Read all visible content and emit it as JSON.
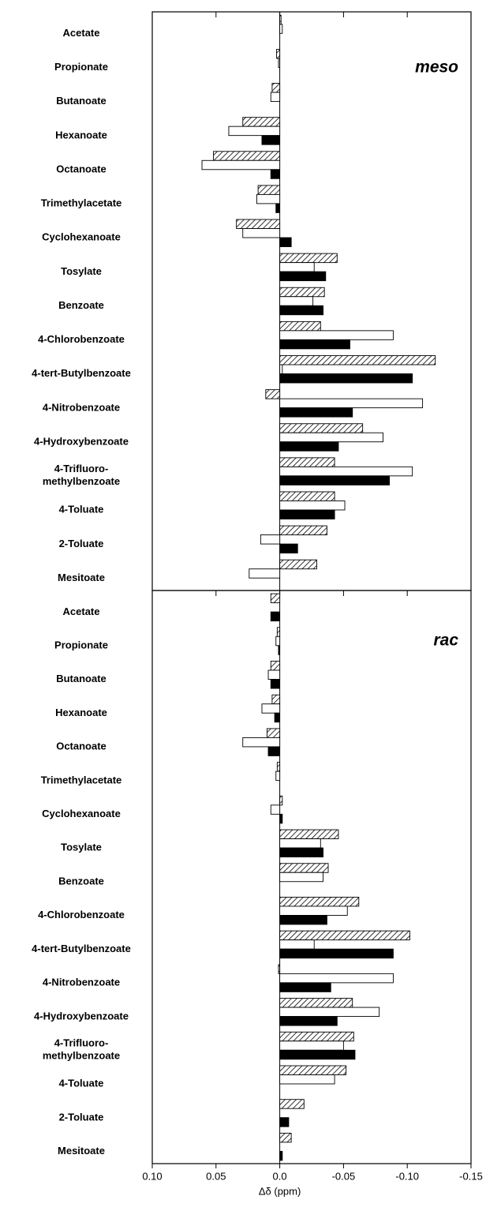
{
  "chart_data": [
    {
      "type": "bar",
      "orientation": "horizontal",
      "label": "meso",
      "categories": [
        "Acetate",
        "Propionate",
        "Butanoate",
        "Hexanoate",
        "Octanoate",
        "Trimethylacetate",
        "Cyclohexanoate",
        "Tosylate",
        "Benzoate",
        "4-Chlorobenzoate",
        "4-tert-Butylbenzoate",
        "4-Nitrobenzoate",
        "4-Hydroxybenzoate",
        "4-Trifluoro-\nmethylbenzoate",
        "4-Toluate",
        "2-Toluate",
        "Mesitoate"
      ],
      "series": [
        {
          "color": "#ffffff",
          "hatch": true,
          "values": [
            -0.001,
            0.0025,
            0.006,
            0.029,
            0.052,
            0.017,
            0.034,
            -0.045,
            -0.035,
            -0.032,
            -0.122,
            0.011,
            -0.065,
            -0.043,
            -0.043,
            -0.037,
            -0.029
          ]
        },
        {
          "color": "#ffffff",
          "values": [
            -0.002,
            0.001,
            0.007,
            0.04,
            0.061,
            0.018,
            0.029,
            -0.027,
            -0.026,
            -0.089,
            -0.002,
            -0.112,
            -0.081,
            -0.104,
            -0.051,
            0.015,
            0.024
          ]
        },
        {
          "color": "#000000",
          "values": [
            0,
            0,
            0,
            0.014,
            0.007,
            0.003,
            -0.009,
            -0.036,
            -0.034,
            -0.055,
            -0.104,
            -0.057,
            -0.046,
            -0.086,
            -0.043,
            -0.014,
            0
          ]
        }
      ],
      "xlim": [
        0.1,
        -0.15
      ]
    },
    {
      "type": "bar",
      "orientation": "horizontal",
      "label": "rac",
      "categories": [
        "Acetate",
        "Propionate",
        "Butanoate",
        "Hexanoate",
        "Octanoate",
        "Trimethylacetate",
        "Cyclohexanoate",
        "Tosylate",
        "Benzoate",
        "4-Chlorobenzoate",
        "4-tert-Butylbenzoate",
        "4-Nitrobenzoate",
        "4-Hydroxybenzoate",
        "4-Trifluoro-\nmethylbenzoate",
        "4-Toluate",
        "2-Toluate",
        "Mesitoate"
      ],
      "series": [
        {
          "color": "#ffffff",
          "hatch": true,
          "values": [
            0.007,
            0.002,
            0.007,
            0.006,
            0.01,
            0.002,
            -0.002,
            -0.046,
            -0.038,
            -0.062,
            -0.102,
            0.001,
            -0.057,
            -0.058,
            -0.052,
            -0.019,
            -0.009
          ]
        },
        {
          "color": "#ffffff",
          "values": [
            0,
            0.003,
            0.009,
            0.014,
            0.029,
            0.003,
            0.007,
            -0.032,
            -0.034,
            -0.053,
            -0.027,
            -0.089,
            -0.078,
            -0.05,
            -0.043,
            0,
            0
          ]
        },
        {
          "color": "#000000",
          "values": [
            0.007,
            0.001,
            0.007,
            0.004,
            0.009,
            0,
            -0.002,
            -0.034,
            0,
            -0.037,
            -0.089,
            -0.04,
            -0.045,
            -0.059,
            0,
            -0.007,
            -0.002
          ]
        }
      ],
      "xlim": [
        0.1,
        -0.15
      ],
      "xticks": [
        {
          "value": 0.1,
          "label": "0.10"
        },
        0.05,
        {
          "value": 0,
          "label": "0.0"
        },
        -0.05,
        {
          "value": -0.1,
          "label": "-0.10"
        },
        -0.15
      ],
      "xlabel": "Δδ (ppm)"
    }
  ]
}
